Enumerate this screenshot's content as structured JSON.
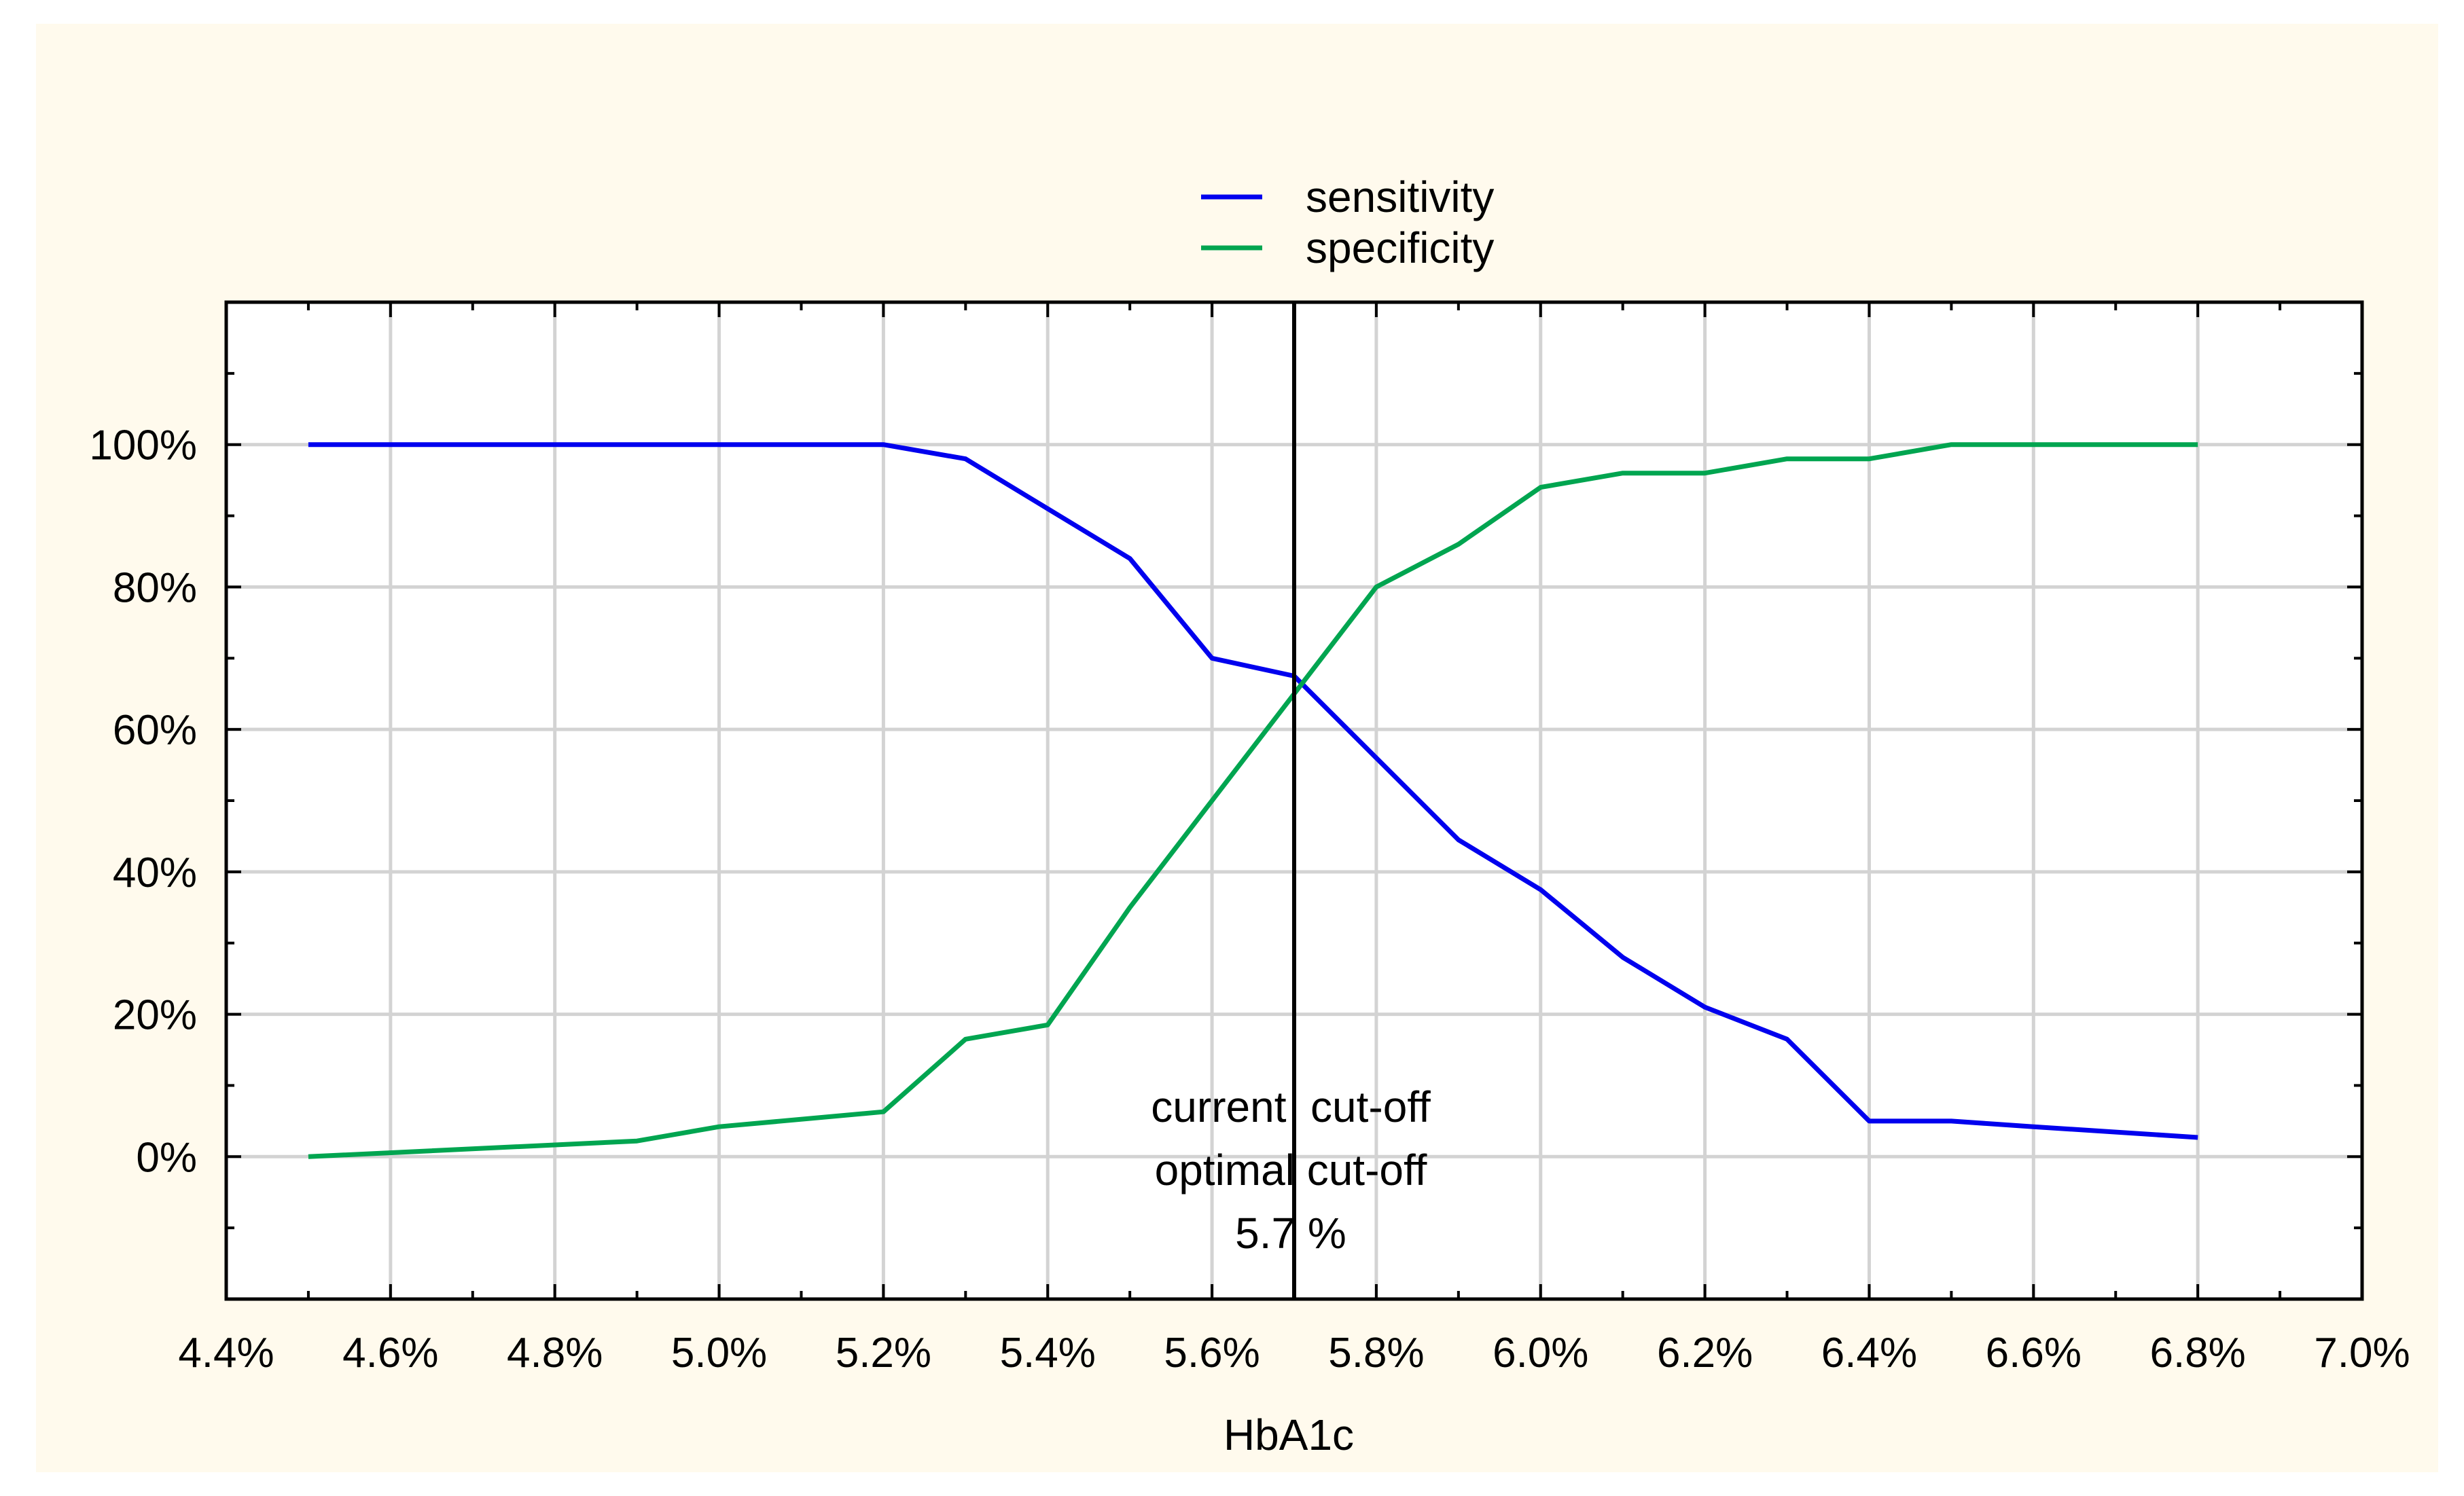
{
  "chart_data": {
    "type": "line",
    "title": "",
    "xlabel": "HbA1c",
    "ylabel": "",
    "xlim": [
      4.4,
      7.0
    ],
    "ylim": [
      -20,
      120
    ],
    "x_ticks": [
      "4.4%",
      "4.6%",
      "4.8%",
      "5.0%",
      "5.2%",
      "5.4%",
      "5.6%",
      "5.8%",
      "6.0%",
      "6.2%",
      "6.4%",
      "6.6%",
      "6.8%",
      "7.0%"
    ],
    "y_ticks": [
      "0%",
      "20%",
      "40%",
      "60%",
      "80%",
      "100%"
    ],
    "grid": true,
    "legend_position": "top-center",
    "x": [
      4.5,
      4.9,
      5.0,
      5.2,
      5.3,
      5.4,
      5.5,
      5.6,
      5.7,
      5.8,
      5.9,
      6.0,
      6.1,
      6.2,
      6.3,
      6.4,
      6.5,
      6.6,
      6.8
    ],
    "series": [
      {
        "name": "sensitivity",
        "color": "#0000ee",
        "values": [
          100,
          100,
          100,
          100,
          98,
          91,
          84,
          70,
          67.5,
          56,
          44.5,
          37.5,
          28,
          21,
          16.5,
          5,
          5,
          4.2,
          2.7
        ]
      },
      {
        "name": "specificity",
        "color": "#00a550",
        "values": [
          0,
          2.2,
          4.2,
          6.3,
          16.5,
          18.5,
          35,
          50,
          65,
          80,
          86,
          94,
          96,
          96,
          98,
          98,
          100,
          100,
          100
        ]
      }
    ],
    "cutoff": {
      "x": 5.7,
      "color": "#000000",
      "annotation": [
        "current  cut-off",
        "optimal cut-off",
        "5.7 %"
      ]
    },
    "background_color": "#fffaed",
    "plot_background_color": "#ffffff"
  }
}
